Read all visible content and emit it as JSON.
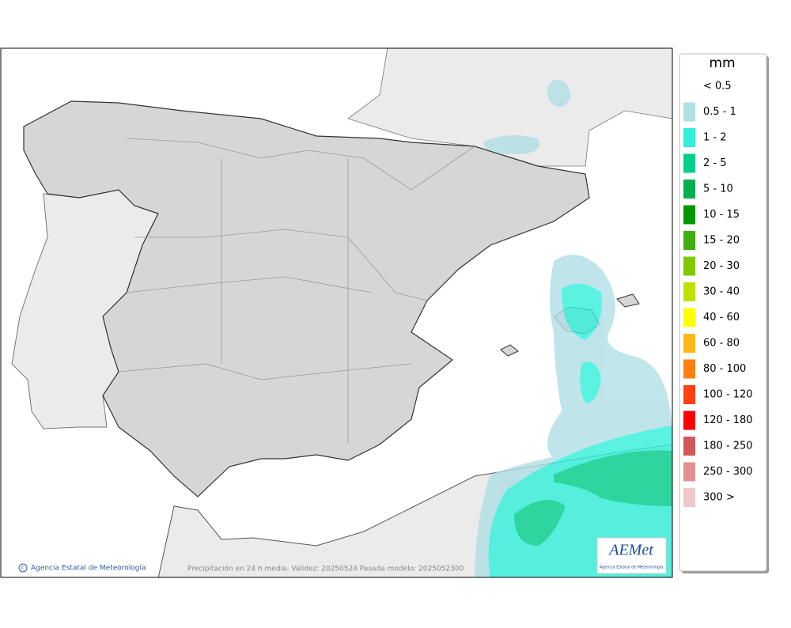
{
  "legend": {
    "title": "mm",
    "items": [
      {
        "label": "< 0.5"
      },
      {
        "label": "0.5 - 1",
        "color": "#b0dfe5"
      },
      {
        "label": "1 - 2",
        "color": "#32f0da"
      },
      {
        "label": "2 - 5",
        "color": "#00d08c"
      },
      {
        "label": "5 - 10",
        "color": "#00b050"
      },
      {
        "label": "10 - 15",
        "color": "#009800"
      },
      {
        "label": "15 - 20",
        "color": "#40b010"
      },
      {
        "label": "20 - 30",
        "color": "#80c800"
      },
      {
        "label": "30 - 40",
        "color": "#c0e000"
      },
      {
        "label": "40 - 60",
        "color": "#ffff00"
      },
      {
        "label": "60 - 80",
        "color": "#ffb818"
      },
      {
        "label": "80 - 100",
        "color": "#ff8010"
      },
      {
        "label": "100 - 120",
        "color": "#ff4010"
      },
      {
        "label": "120 - 180",
        "color": "#ff0000"
      },
      {
        "label": "180 - 250",
        "color": "#d05858"
      },
      {
        "label": "250 - 300",
        "color": "#e09090"
      },
      {
        "label": "300 >",
        "color": "#f0c8c8"
      }
    ]
  },
  "footer": {
    "credit": "Agencia Estatal de Meteorología",
    "caption": "Precipitación en 24 h media. Validez: 20250524 Pasada modelo: 2025052300"
  },
  "logo": {
    "name": "AEMet",
    "subtitle": "Agencia Estatal de Meteorología"
  }
}
